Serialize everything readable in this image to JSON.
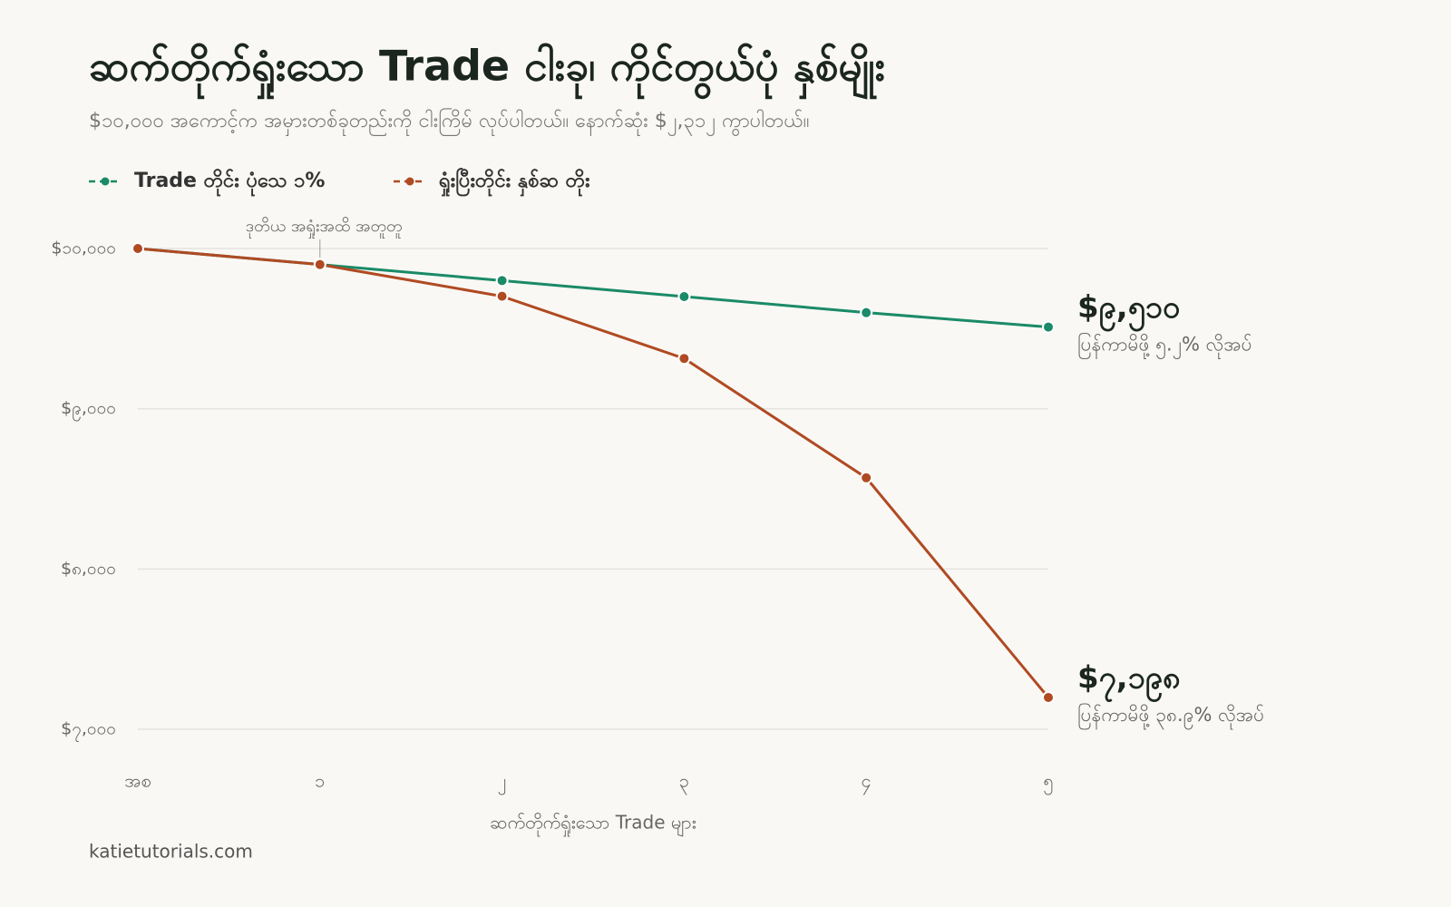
{
  "chart_data": {
    "type": "line",
    "title": "ဆက်တိုက်ရှုံးသော Trade ငါးခု၊ ကိုင်တွယ်ပုံ နှစ်မျိုး",
    "subtitle": "$၁၀,၀၀၀ အကောင့်က အမှားတစ်ခုတည်းကို ငါးကြိမ် လုပ်ပါတယ်။ နောက်ဆုံး $၂,၃၁၂ ကွာပါတယ်။",
    "x_label": "ဆက်တိုက်ရှုံးသော Trade များ",
    "annotation": "ဒုတိယ အရှုံးအထိ အတူတူ",
    "source": "katietutorials.com",
    "categories": [
      "အစ",
      "၁",
      "၂",
      "၃",
      "၄",
      "၅"
    ],
    "series": [
      {
        "name": "Trade တိုင်း ပုံသေ ၁%",
        "color": "#1a8a68",
        "values": [
          10000,
          9900,
          9800,
          9700,
          9600,
          9510
        ],
        "value_labels": [
          null,
          null,
          null,
          null,
          null,
          "$၉,၅၁၀"
        ],
        "end_note": "ပြန်ကာမိဖို့ ၅.၂% လိုအပ်"
      },
      {
        "name": "ရှုံးပြီးတိုင်း နှစ်ဆ တိုး",
        "color": "#b04a22",
        "values": [
          10000,
          9900,
          9702,
          9314,
          8569,
          7198
        ],
        "value_labels": [
          null,
          null,
          null,
          null,
          null,
          "$၇,၁၉၈"
        ],
        "end_note": "ပြန်ကာမိဖို့ ၃၈.၉% လိုအပ်"
      }
    ],
    "ylim": [
      7000,
      10000
    ],
    "yticks": [
      {
        "value": 7000,
        "label": "$၇,၀၀၀"
      },
      {
        "value": 8000,
        "label": "$၈,၀၀၀"
      },
      {
        "value": 9000,
        "label": "$၉,၀၀၀"
      },
      {
        "value": 10000,
        "label": "$၁၀,၀၀၀"
      }
    ],
    "grid": true
  }
}
